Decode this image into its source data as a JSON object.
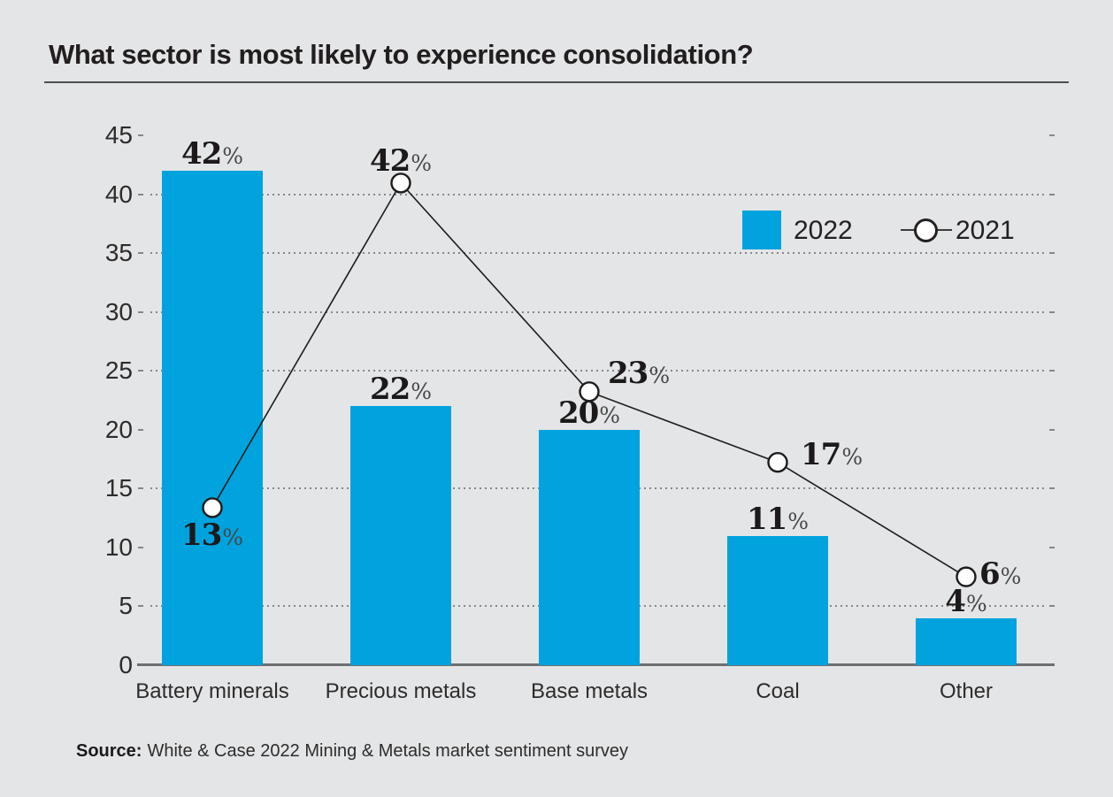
{
  "chart_data": {
    "type": "bar",
    "title": "What sector is most likely to experience consolidation?",
    "categories": [
      "Battery minerals",
      "Precious metals",
      "Base metals",
      "Coal",
      "Other"
    ],
    "series": [
      {
        "name": "2022",
        "type": "bar",
        "values": [
          42,
          22,
          20,
          11,
          4
        ]
      },
      {
        "name": "2021",
        "type": "line",
        "values": [
          13,
          42,
          23,
          17,
          6
        ]
      }
    ],
    "unit": "%",
    "ylim": [
      0,
      45
    ],
    "y_ticks": [
      45,
      40,
      35,
      30,
      25,
      20,
      15,
      10,
      5,
      0
    ],
    "gridlines_at": [
      40,
      35,
      30,
      25,
      15,
      5
    ],
    "grid": "dotted-horizontal",
    "legend_position": "top-right-inside"
  },
  "legend": {
    "items": [
      {
        "label": "2022",
        "marker": "square"
      },
      {
        "label": "2021",
        "marker": "line-circle"
      }
    ]
  },
  "source": {
    "label": "Source:",
    "text": "White & Case 2022 Mining & Metals market sentiment survey"
  },
  "colors": {
    "background": "#e4e5e7",
    "bar_2022": "#00a3dd",
    "line_2021": "#1c1c1c",
    "marker_fill": "#ffffff",
    "grid": "#85878a",
    "axis": "#6d6e70",
    "text": "#2d2c2b",
    "title": "#221e1f"
  }
}
